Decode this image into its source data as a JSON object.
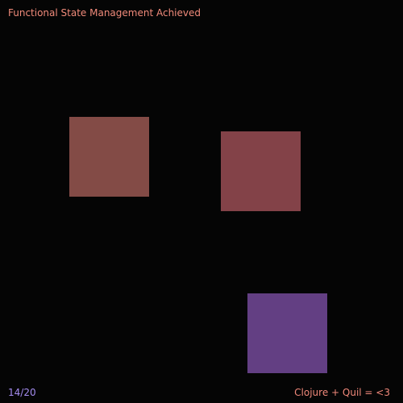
{
  "sketch": {
    "background": "#050505",
    "title": "Functional State Management Achieved",
    "title_color": "#f08a7a",
    "counter": "14/20",
    "counter_color": "#a58cf0",
    "footer": "Clojure + Quil = <3",
    "footer_color": "#f0887a",
    "squares": [
      {
        "color": "#834b46"
      },
      {
        "color": "#834248"
      },
      {
        "color": "#633f83"
      }
    ]
  }
}
